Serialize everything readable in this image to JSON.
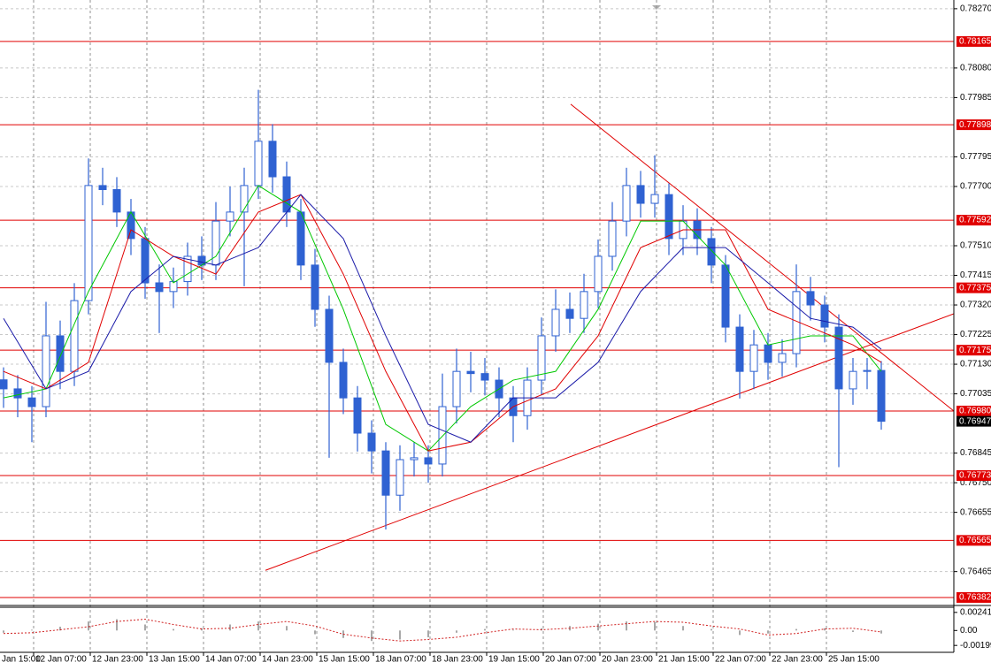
{
  "chart_data": {
    "type": "candlestick",
    "color": "#2f62d2",
    "grid": true,
    "xlim": [
      -0.25,
      67.125
    ],
    "xticks": [
      {
        "value": -1.875,
        "label": "Jan 15:00"
      },
      {
        "value": 2.125,
        "label": "12 Jan 07:00"
      },
      {
        "value": 6.125,
        "label": "12 Jan 23:00"
      },
      {
        "value": 10.125,
        "label": "13 Jan 15:00"
      },
      {
        "value": 14.125,
        "label": "14 Jan 07:00"
      },
      {
        "value": 18.125,
        "label": "14 Jan 23:00"
      },
      {
        "value": 22.125,
        "label": "15 Jan 15:00"
      },
      {
        "value": 26.125,
        "label": "18 Jan 07:00"
      },
      {
        "value": 30.125,
        "label": "18 Jan 23:00"
      },
      {
        "value": 34.125,
        "label": "19 Jan 15:00"
      },
      {
        "value": 38.125,
        "label": "20 Jan 07:00"
      },
      {
        "value": 42.125,
        "label": "20 Jan 23:00"
      },
      {
        "value": 46.125,
        "label": "21 Jan 15:00"
      },
      {
        "value": 50.125,
        "label": "22 Jan 07:00"
      },
      {
        "value": 54.125,
        "label": "22 Jan 23:00"
      },
      {
        "value": 58.125,
        "label": "25 Jan 15:00"
      }
    ],
    "ylim": [
      0.76362,
      0.78298
    ],
    "yticks": [
      {
        "value": 0.7827,
        "label": "0.78270"
      },
      {
        "value": 0.7808,
        "label": "0.78080"
      },
      0.77985,
      0.77795,
      {
        "value": 0.777,
        "label": "0.77700"
      },
      {
        "value": 0.7751,
        "label": "0.77510"
      },
      0.77415,
      {
        "value": 0.7732,
        "label": "0.77320"
      },
      0.77225,
      {
        "value": 0.7713,
        "label": "0.77130"
      },
      0.77035,
      0.76845,
      {
        "value": 0.7675,
        "label": "0.76750"
      },
      0.76655,
      0.76465
    ],
    "open": [
      0.7708,
      0.77051,
      0.77022,
      0.76994,
      0.77221,
      0.77107,
      0.77334,
      0.77703,
      0.7769,
      0.77618,
      0.77533,
      0.77391,
      0.77363,
      0.77395,
      0.77476,
      0.77448,
      0.77589,
      0.77618,
      0.77703,
      0.77845,
      0.77731,
      0.77618,
      0.77448,
      0.77306,
      0.77136,
      0.77022,
      0.76909,
      0.76852,
      0.7671,
      0.76824,
      0.7683,
      0.7681,
      0.76994,
      0.77107,
      0.771,
      0.77079,
      0.77022,
      0.76965,
      0.77079,
      0.77221,
      0.77306,
      0.77277,
      0.77363,
      0.77476,
      0.77589,
      0.77703,
      0.77646,
      0.77674,
      0.77533,
      0.77589,
      0.77533,
      0.77448,
      0.77249,
      0.77107,
      0.77192,
      0.77136,
      0.77164,
      0.77363,
      0.7732,
      0.77249,
      0.77051,
      0.77107,
      0.7711
    ],
    "high": [
      0.7712,
      0.77095,
      0.7706,
      0.7733,
      0.7727,
      0.7739,
      0.7779,
      0.7776,
      0.7773,
      0.7766,
      0.7757,
      0.7745,
      0.7744,
      0.7752,
      0.7754,
      0.7765,
      0.777,
      0.7776,
      0.7801,
      0.779,
      0.7778,
      0.7766,
      0.775,
      0.7735,
      0.7718,
      0.7706,
      0.7695,
      0.7688,
      0.7687,
      0.7688,
      0.7687,
      0.771,
      0.7718,
      0.7717,
      0.7715,
      0.7712,
      0.7706,
      0.7712,
      0.7728,
      0.7737,
      0.7736,
      0.7742,
      0.7753,
      0.7765,
      0.7776,
      0.7775,
      0.778,
      0.7771,
      0.7764,
      0.7763,
      0.7757,
      0.7748,
      0.7729,
      0.7724,
      0.7723,
      0.7721,
      0.7745,
      0.7741,
      0.7735,
      0.7729,
      0.7715,
      0.7715,
      0.7714
    ],
    "low": [
      0.7699,
      0.7696,
      0.7688,
      0.7696,
      0.7705,
      0.7706,
      0.7729,
      0.7764,
      0.7757,
      0.7748,
      0.7734,
      0.7723,
      0.7731,
      0.7735,
      0.774,
      0.774,
      0.7754,
      0.7738,
      0.7766,
      0.7768,
      0.7757,
      0.774,
      0.7725,
      0.7683,
      0.7697,
      0.7685,
      0.7678,
      0.766,
      0.7666,
      0.7677,
      0.7675,
      0.7677,
      0.7694,
      0.7704,
      0.7703,
      0.7696,
      0.7688,
      0.7692,
      0.7703,
      0.7717,
      0.7723,
      0.7723,
      0.7731,
      0.7743,
      0.7754,
      0.776,
      0.776,
      0.7748,
      0.7748,
      0.7748,
      0.7739,
      0.772,
      0.7702,
      0.7705,
      0.7708,
      0.7709,
      0.7712,
      0.7727,
      0.772,
      0.768,
      0.77,
      0.7705,
      0.7692
    ],
    "close": [
      0.77051,
      0.77022,
      0.76994,
      0.77221,
      0.77107,
      0.77334,
      0.77703,
      0.7769,
      0.77618,
      0.77533,
      0.77391,
      0.77363,
      0.77395,
      0.77476,
      0.77448,
      0.77589,
      0.77618,
      0.77703,
      0.77845,
      0.77731,
      0.77618,
      0.77448,
      0.77306,
      0.77136,
      0.77022,
      0.76909,
      0.76852,
      0.7671,
      0.76824,
      0.7683,
      0.7681,
      0.76994,
      0.77107,
      0.771,
      0.77079,
      0.77022,
      0.76965,
      0.77079,
      0.77221,
      0.77306,
      0.77277,
      0.77363,
      0.77476,
      0.77589,
      0.77703,
      0.77646,
      0.77674,
      0.77533,
      0.77589,
      0.77533,
      0.77448,
      0.77249,
      0.77107,
      0.77192,
      0.77136,
      0.77164,
      0.77363,
      0.7732,
      0.77249,
      0.77051,
      0.77107,
      0.7711,
      0.76947
    ],
    "overlays": [
      {
        "color": "#00c800",
        "x": [
          0,
          3,
          6,
          9,
          12,
          15,
          18,
          21,
          24,
          27,
          30,
          33,
          36,
          39,
          42,
          45,
          48,
          51,
          54,
          57,
          60,
          62
        ],
        "values": [
          0.77022,
          0.77051,
          0.77363,
          0.77618,
          0.77391,
          0.77476,
          0.77703,
          0.77618,
          0.77306,
          0.76937,
          0.76852,
          0.76994,
          0.77079,
          0.77107,
          0.77306,
          0.77589,
          0.77589,
          0.77448,
          0.77192,
          0.77221,
          0.77221,
          0.77107
        ]
      },
      {
        "color": "#e00000",
        "x": [
          0,
          3,
          6,
          9,
          12,
          15,
          18,
          21,
          24,
          27,
          30,
          33,
          36,
          39,
          42,
          45,
          48,
          51,
          54,
          57,
          60,
          62
        ],
        "values": [
          0.77107,
          0.77051,
          0.77136,
          0.77561,
          0.77476,
          0.77419,
          0.77618,
          0.77674,
          0.77419,
          0.77107,
          0.76852,
          0.7688,
          0.76994,
          0.77051,
          0.77221,
          0.77504,
          0.77561,
          0.77561,
          0.77306,
          0.77249,
          0.77192,
          0.77136
        ]
      },
      {
        "color": "#1a1aa8",
        "x": [
          0,
          3,
          6,
          9,
          12,
          15,
          18,
          21,
          24,
          27,
          30,
          33,
          36,
          39,
          42,
          45,
          48,
          51,
          54,
          57,
          60,
          62
        ],
        "values": [
          0.77277,
          0.77051,
          0.77107,
          0.77363,
          0.77476,
          0.77448,
          0.77504,
          0.77674,
          0.77533,
          0.77221,
          0.76937,
          0.7688,
          0.77022,
          0.77022,
          0.77136,
          0.77363,
          0.77504,
          0.77504,
          0.77391,
          0.77277,
          0.77249,
          0.77178
        ]
      }
    ],
    "trendlines": [
      {
        "color": "#e00000",
        "x": [
          18.5,
          67.125
        ],
        "values": [
          0.76469,
          0.77292
        ]
      },
      {
        "color": "#e00000",
        "x": [
          40.06,
          67.125
        ],
        "values": [
          0.77964,
          0.7698
        ]
      }
    ],
    "levels": {
      "color": "#e00000",
      "values": [
        0.78165,
        0.77898,
        0.77592,
        0.77375,
        0.77175,
        0.7698,
        0.76773,
        0.76565,
        0.76382
      ],
      "value_labels": [
        "0.78165",
        "0.77898",
        "0.77592",
        "0.77375",
        "0.77175",
        "0.76980",
        "0.76773",
        "0.76565",
        "0.76382"
      ]
    },
    "last_price": 0.76947,
    "oscillator": {
      "type": "bar",
      "color": "#a8a8a8",
      "signal_color": "#d02020",
      "ylim": [
        -0.00291,
        0.00298
      ],
      "yticks": [
        0.00241,
        {
          "value": 0,
          "label": "0.00"
        },
        -0.00199
      ],
      "x": [
        0,
        2,
        4,
        6,
        8,
        10,
        12,
        14,
        16,
        18,
        20,
        22,
        24,
        26,
        28,
        30,
        32,
        34,
        36,
        38,
        40,
        42,
        44,
        46,
        48,
        50,
        52,
        54,
        56,
        58,
        60,
        62
      ],
      "values": [
        -0.0003,
        0.0001,
        0.0005,
        0.0012,
        0.0015,
        0.0008,
        0.0002,
        0.0003,
        0.0008,
        0.0012,
        0.0006,
        -0.0005,
        -0.001,
        -0.0014,
        -0.0012,
        -0.0009,
        -0.0003,
        0.0002,
        0.0001,
        0.0003,
        0.0006,
        0.0009,
        0.0012,
        0.0011,
        0.0006,
        0.0002,
        -0.0006,
        -0.0004,
        0.0002,
        0.0003,
        -0.0002,
        -0.0004
      ],
      "signal": [
        -0.0004,
        -0.0003,
        0.0001,
        0.0005,
        0.0012,
        0.0015,
        0.0008,
        0.0002,
        0.0003,
        0.0008,
        0.0012,
        0.0006,
        -0.0005,
        -0.001,
        -0.0014,
        -0.0012,
        -0.0009,
        -0.0003,
        0.0002,
        0.0001,
        0.0003,
        0.0006,
        0.0009,
        0.0012,
        0.0011,
        0.0006,
        0.0002,
        -0.0006,
        -0.0004,
        0.0002,
        0.0003,
        -0.0002
      ]
    }
  }
}
